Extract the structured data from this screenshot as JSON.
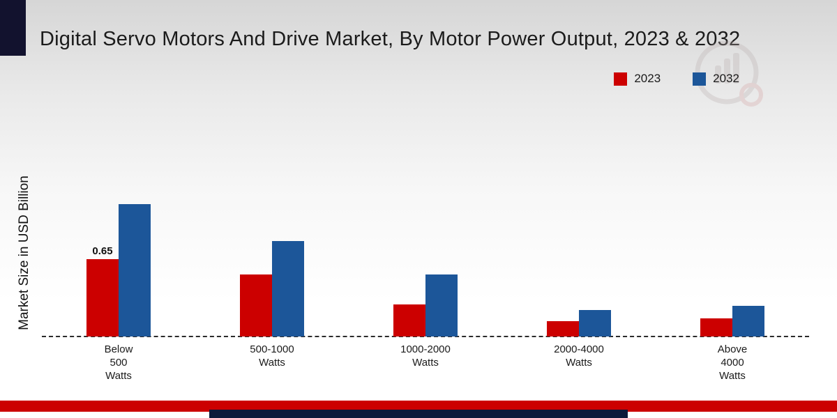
{
  "title": "Digital Servo Motors And Drive Market, By Motor Power Output, 2023 & 2032",
  "y_axis_label": "Market Size in USD Billion",
  "legend": [
    {
      "label": "2023",
      "color": "#cc0000"
    },
    {
      "label": "2032",
      "color": "#1c5699"
    }
  ],
  "colors": {
    "series_2023": "#cc0000",
    "series_2032": "#1c5699",
    "footer_red": "#cc0000",
    "footer_navy": "#0d1a3a",
    "corner_block": "#12122e",
    "baseline": "#2a2a2a"
  },
  "chart_data": {
    "type": "bar",
    "title": "Digital Servo Motors And Drive Market, By Motor Power Output, 2023 & 2032",
    "ylabel": "Market Size in USD Billion",
    "xlabel": "",
    "categories": [
      "Below 500 Watts",
      "500-1000 Watts",
      "1000-2000 Watts",
      "2000-4000 Watts",
      "Above 4000 Watts"
    ],
    "category_label_lines": [
      [
        "Below",
        "500",
        "Watts"
      ],
      [
        "500-1000",
        "Watts"
      ],
      [
        "1000-2000",
        "Watts"
      ],
      [
        "2000-4000",
        "Watts"
      ],
      [
        "Above",
        "4000",
        "Watts"
      ]
    ],
    "series": [
      {
        "name": "2023",
        "color": "#cc0000",
        "values": [
          0.65,
          0.52,
          0.27,
          0.13,
          0.15
        ],
        "value_labels": [
          "0.65",
          "",
          "",
          "",
          ""
        ]
      },
      {
        "name": "2032",
        "color": "#1c5699",
        "values": [
          1.11,
          0.8,
          0.52,
          0.22,
          0.26
        ],
        "value_labels": [
          "",
          "",
          "",
          "",
          ""
        ]
      }
    ],
    "ylim": [
      0,
      1.3
    ],
    "grid": false,
    "legend_position": "top-right",
    "baseline_style": "dashed",
    "annotations": [
      {
        "series": "2023",
        "category": "Below 500 Watts",
        "text": "0.65"
      }
    ]
  }
}
